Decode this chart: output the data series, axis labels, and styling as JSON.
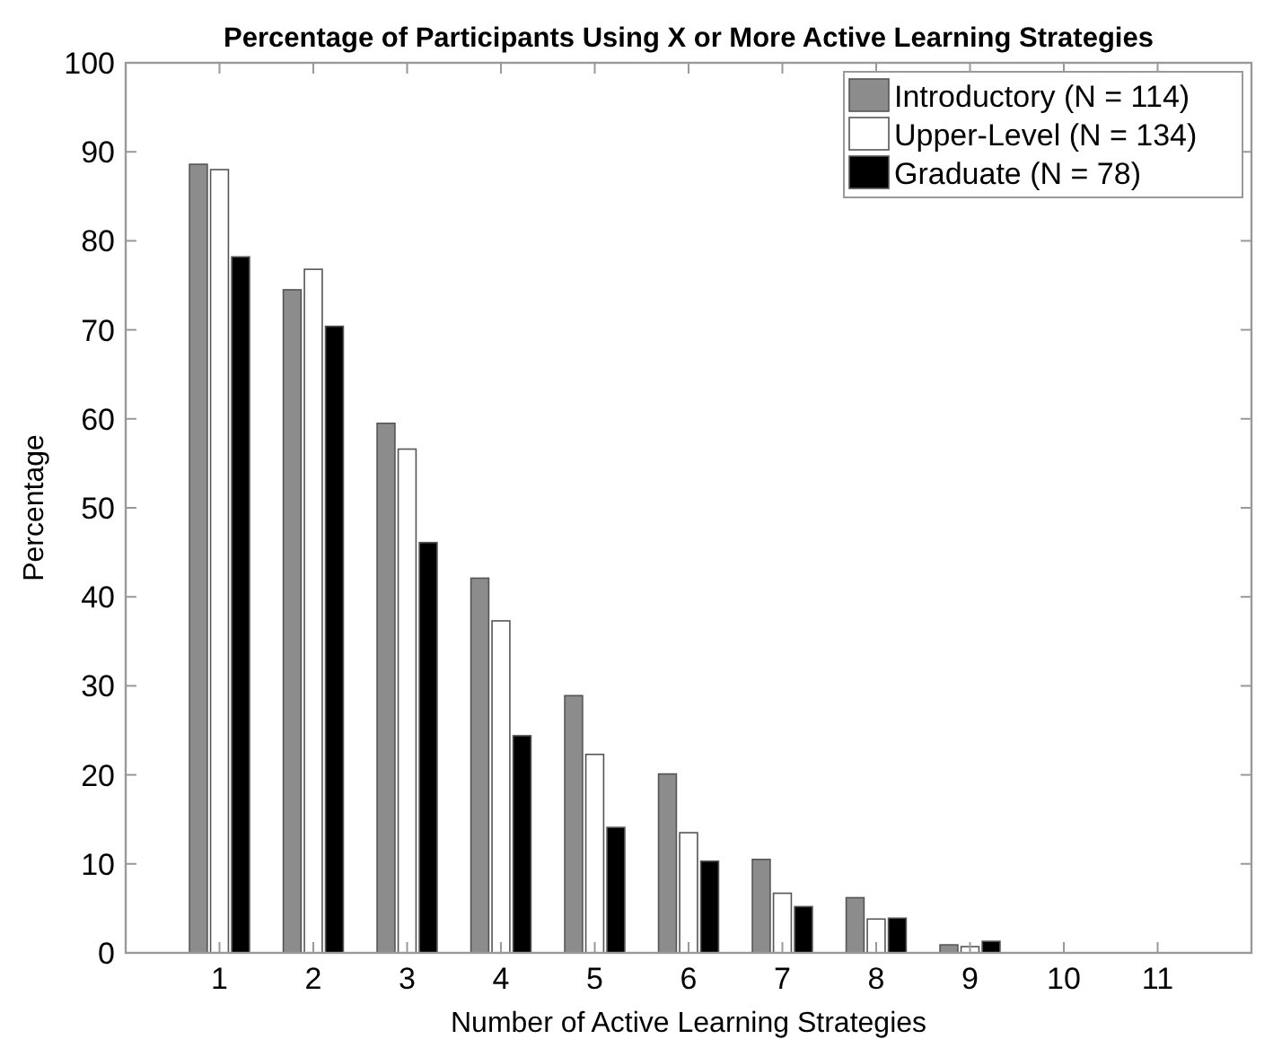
{
  "chart_data": {
    "type": "bar",
    "title": "Percentage of Participants Using X or More Active Learning Strategies",
    "xlabel": "Number of Active Learning Strategies",
    "ylabel": "Percentage",
    "x": [
      1,
      2,
      3,
      4,
      5,
      6,
      7,
      8,
      9,
      10,
      11
    ],
    "series": [
      {
        "name": "Introductory (N = 114)",
        "color": "#8c8c8c",
        "values": [
          88.6,
          74.5,
          59.5,
          42.1,
          28.9,
          20.1,
          10.5,
          6.2,
          0.9,
          0,
          0
        ]
      },
      {
        "name": "Upper-Level (N = 134)",
        "color": "#ffffff",
        "values": [
          88.0,
          76.8,
          56.6,
          37.3,
          22.3,
          13.5,
          6.7,
          3.8,
          0.7,
          0,
          0
        ]
      },
      {
        "name": "Graduate (N = 78)",
        "color": "#000000",
        "values": [
          78.2,
          70.4,
          46.1,
          24.4,
          14.1,
          10.3,
          5.2,
          3.9,
          1.3,
          0,
          0
        ]
      }
    ],
    "xlim": [
      0,
      12
    ],
    "xticks": [
      1,
      2,
      3,
      4,
      5,
      6,
      7,
      8,
      9,
      10,
      11
    ],
    "ylim": [
      0,
      100
    ],
    "yticks": [
      0,
      10,
      20,
      30,
      40,
      50,
      60,
      70,
      80,
      90,
      100
    ],
    "grid": false,
    "legend": "top right"
  }
}
